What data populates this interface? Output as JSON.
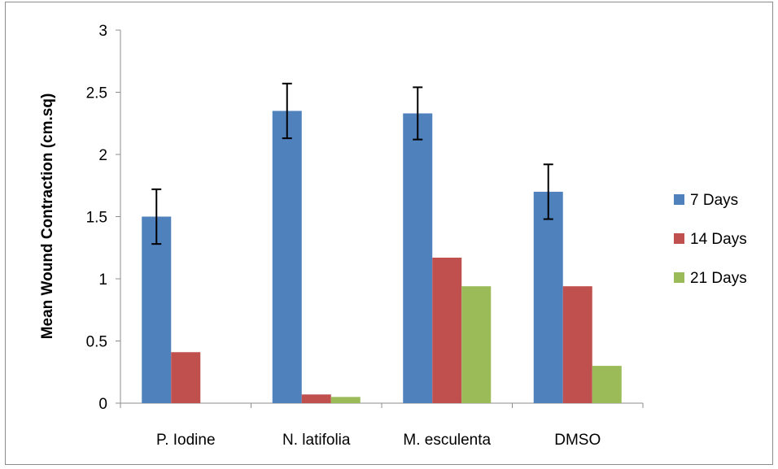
{
  "chart_data": {
    "type": "bar",
    "title": "",
    "xlabel": "",
    "ylabel": "Mean Wound Contraction (cm.sq)",
    "ylim": [
      0,
      3
    ],
    "yticks": [
      "0",
      "0.5",
      "1",
      "1.5",
      "2",
      "2.5",
      "3"
    ],
    "categories": [
      "P. Iodine",
      "N. latifolia",
      "M. esculenta",
      "DMSO"
    ],
    "series": [
      {
        "name": "7 Days",
        "color": "#4f81bd",
        "values": [
          1.5,
          2.35,
          2.33,
          1.7
        ],
        "errors": [
          0.22,
          0.22,
          0.21,
          0.22
        ]
      },
      {
        "name": "14 Days",
        "color": "#c0504d",
        "values": [
          0.41,
          0.07,
          1.17,
          0.94
        ],
        "errors": null
      },
      {
        "name": "21 Days",
        "color": "#9bbb59",
        "values": [
          0.0,
          0.05,
          0.94,
          0.3
        ],
        "errors": null
      }
    ],
    "legend_position": "right",
    "grid": false
  }
}
